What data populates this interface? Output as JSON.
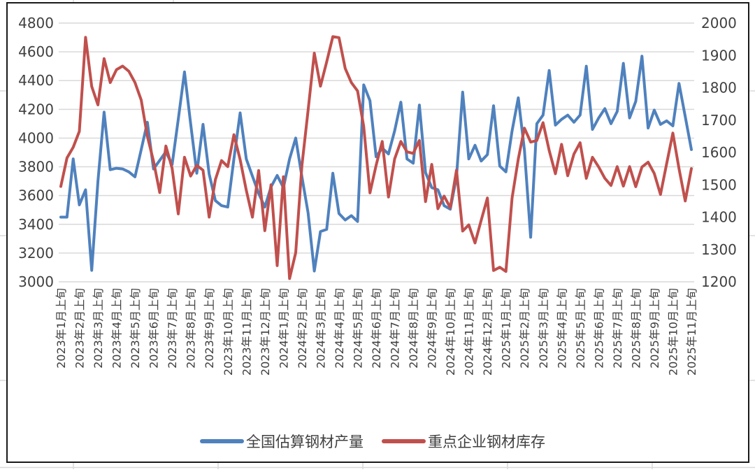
{
  "chart_data": {
    "type": "line",
    "title": "",
    "grid": "horizontal",
    "legend_position": "bottom",
    "colors": {
      "production_blue": "#4F81BD",
      "inventory_red": "#C0504D",
      "gridline": "#D9D9D9",
      "axis_text": "#404040",
      "frame_border": "#1a1a1a",
      "sheet_line": "#d9d9d9"
    },
    "left_axis": {
      "min": 3000,
      "max": 4800,
      "step": 200,
      "ticks": [
        "4800",
        "4600",
        "4400",
        "4200",
        "4000",
        "3800",
        "3600",
        "3400",
        "3200",
        "3000"
      ]
    },
    "right_axis": {
      "min": 1200,
      "max": 2000,
      "step": 100,
      "ticks": [
        "2000",
        "1900",
        "1800",
        "1700",
        "1600",
        "1500",
        "1400",
        "1300",
        "1200"
      ]
    },
    "x_tick_labels": [
      "2023年1月上旬",
      "2023年2月上旬",
      "2023年3月上旬",
      "2023年4月上旬",
      "2023年5月上旬",
      "2023年6月上旬",
      "2023年7月上旬",
      "2023年8月上旬",
      "2023年9月上旬",
      "2023年10月上旬",
      "2023年11月上旬",
      "2023年12月上旬",
      "2024年1月上旬",
      "2024年2月上旬",
      "2024年3月上旬",
      "2024年4月上旬",
      "2024年5月上旬",
      "2024年6月上旬",
      "2024年7月上旬",
      "2024年8月上旬",
      "2024年9月上旬",
      "2024年10月上旬",
      "2024年11月上旬",
      "2024年12月上旬",
      "2025年1月上旬",
      "2025年2月上旬",
      "2025年3月上旬",
      "2025年4月上旬",
      "2025年5月上旬",
      "2025年6月上旬",
      "2025年7月上旬",
      "2025年8月上旬",
      "2025年9月上旬",
      "2025年10月上旬",
      "2025年11月上旬"
    ],
    "points_per_x_label": 3,
    "series": [
      {
        "name": "全国估算钢材产量",
        "axis": "left",
        "color": "#4F81BD",
        "values": [
          3450,
          3450,
          3855,
          3535,
          3640,
          3080,
          3700,
          4180,
          3780,
          3790,
          3785,
          3765,
          3730,
          3920,
          4110,
          3785,
          3845,
          3905,
          3815,
          4130,
          4460,
          4100,
          3755,
          4095,
          3750,
          3565,
          3530,
          3520,
          3855,
          4175,
          3855,
          3735,
          3615,
          3520,
          3660,
          3740,
          3655,
          3855,
          4000,
          3730,
          3480,
          3075,
          3350,
          3365,
          3755,
          3475,
          3430,
          3460,
          3420,
          4370,
          4260,
          3870,
          3930,
          3890,
          4050,
          4250,
          3855,
          3825,
          4230,
          3760,
          3655,
          3640,
          3530,
          3505,
          3730,
          4320,
          3855,
          3950,
          3840,
          3885,
          4225,
          3805,
          3765,
          4050,
          4280,
          3915,
          3310,
          4100,
          4160,
          4470,
          4090,
          4130,
          4160,
          4110,
          4160,
          4500,
          4060,
          4140,
          4205,
          4100,
          4185,
          4520,
          4140,
          4255,
          4570,
          4070,
          4195,
          4095,
          4120,
          4085,
          4380,
          4150,
          3920
        ]
      },
      {
        "name": "重点企业钢材库存",
        "axis": "right",
        "color": "#C0504D",
        "values": [
          1495,
          1583,
          1616,
          1665,
          1956,
          1804,
          1747,
          1890,
          1816,
          1856,
          1867,
          1851,
          1816,
          1762,
          1650,
          1573,
          1476,
          1620,
          1551,
          1410,
          1585,
          1527,
          1560,
          1545,
          1400,
          1516,
          1575,
          1556,
          1655,
          1578,
          1483,
          1400,
          1544,
          1358,
          1500,
          1250,
          1525,
          1210,
          1290,
          1560,
          1730,
          1907,
          1805,
          1880,
          1958,
          1955,
          1860,
          1816,
          1790,
          1680,
          1475,
          1560,
          1634,
          1462,
          1580,
          1634,
          1602,
          1597,
          1637,
          1448,
          1563,
          1426,
          1465,
          1429,
          1545,
          1357,
          1376,
          1320,
          1390,
          1459,
          1235,
          1245,
          1232,
          1459,
          1580,
          1675,
          1632,
          1637,
          1692,
          1606,
          1534,
          1625,
          1528,
          1595,
          1630,
          1520,
          1585,
          1555,
          1520,
          1498,
          1556,
          1496,
          1556,
          1494,
          1555,
          1570,
          1535,
          1470,
          1565,
          1660,
          1550,
          1450,
          1550
        ]
      }
    ],
    "legend": {
      "items": [
        {
          "label": "全国估算钢材产量",
          "color": "#4F81BD"
        },
        {
          "label": "重点企业钢材库存",
          "color": "#C0504D"
        }
      ]
    }
  }
}
